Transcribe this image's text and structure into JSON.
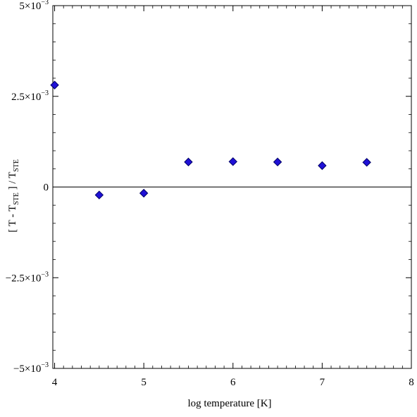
{
  "chart_data": {
    "type": "scatter",
    "xlabel": "log temperature [K]",
    "ylabel": {
      "parts": [
        "[ T - T",
        "STE",
        " ] / T",
        "STE"
      ]
    },
    "xlim": [
      3.98,
      8
    ],
    "ylim": [
      -0.005,
      0.005
    ],
    "x_ticks": [
      {
        "value": 4,
        "label": "4"
      },
      {
        "value": 5,
        "label": "5"
      },
      {
        "value": 6,
        "label": "6"
      },
      {
        "value": 7,
        "label": "7"
      },
      {
        "value": 8,
        "label": "8"
      }
    ],
    "y_ticks": [
      {
        "value": 0.005,
        "mantissa": "5×10",
        "exp": "−3"
      },
      {
        "value": 0.0025,
        "mantissa": "2.5×10",
        "exp": "−3"
      },
      {
        "value": 0,
        "mantissa": "0",
        "exp": ""
      },
      {
        "value": -0.0025,
        "mantissa": "−2.5×10",
        "exp": "−3"
      },
      {
        "value": -0.005,
        "mantissa": "−5×10",
        "exp": "−3"
      }
    ],
    "zero_line": true,
    "marker": "diamond",
    "marker_color": "#1f10d6",
    "marker_edge": "#000066",
    "series": [
      {
        "x": [
          4.0,
          4.5,
          5.0,
          5.5,
          6.0,
          6.5,
          7.0,
          7.5
        ],
        "y": [
          0.00281,
          -0.00022,
          -0.00017,
          0.00069,
          0.0007,
          0.00069,
          0.00059,
          0.00068
        ]
      }
    ]
  }
}
